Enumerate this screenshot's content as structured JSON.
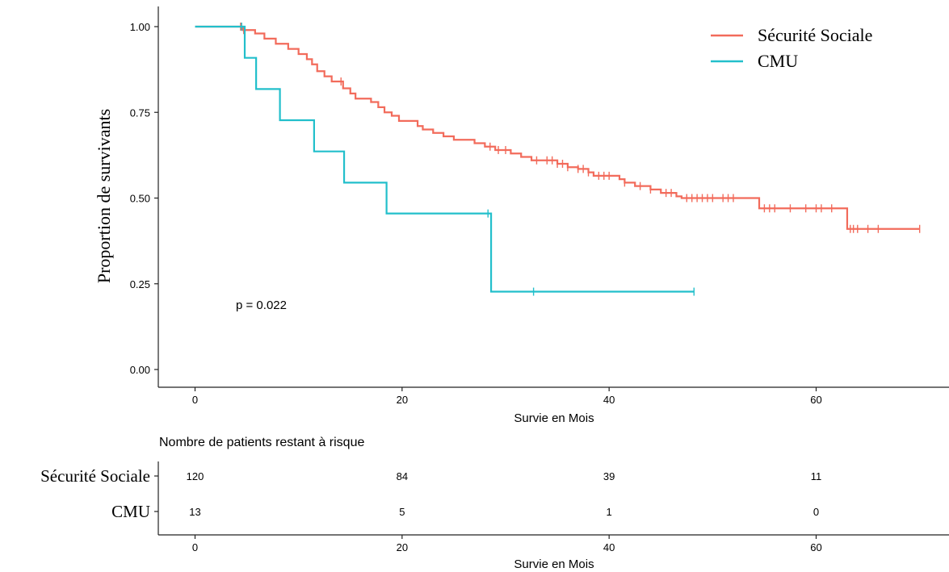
{
  "chart_data": [
    {
      "type": "line",
      "subtype": "kaplan-meier step curve",
      "xlabel": "Survie en Mois",
      "ylabel": "Proportion de survivants",
      "xlim": [
        -1.5,
        70
      ],
      "ylim": [
        -0.03,
        1.05
      ],
      "x_ticks": [
        0,
        20,
        40,
        60
      ],
      "y_ticks": [
        "0.00",
        "0.25",
        "0.50",
        "0.75",
        "1.00"
      ],
      "grid": false,
      "legend_position": "top-right",
      "annotation": "p = 0.022",
      "series": [
        {
          "name": "Sécurité Sociale",
          "color": "#f26b5b",
          "steps": [
            [
              0,
              1.0
            ],
            [
              4.6,
              0.99
            ],
            [
              5.8,
              0.98
            ],
            [
              6.7,
              0.965
            ],
            [
              7.8,
              0.95
            ],
            [
              9.0,
              0.935
            ],
            [
              10.0,
              0.92
            ],
            [
              10.8,
              0.905
            ],
            [
              11.3,
              0.89
            ],
            [
              11.8,
              0.87
            ],
            [
              12.5,
              0.855
            ],
            [
              13.2,
              0.84
            ],
            [
              14.3,
              0.82
            ],
            [
              15.0,
              0.805
            ],
            [
              15.5,
              0.79
            ],
            [
              17.0,
              0.78
            ],
            [
              17.7,
              0.765
            ],
            [
              18.3,
              0.75
            ],
            [
              19.0,
              0.74
            ],
            [
              19.7,
              0.725
            ],
            [
              21.5,
              0.71
            ],
            [
              22.0,
              0.7
            ],
            [
              23.0,
              0.69
            ],
            [
              24.0,
              0.68
            ],
            [
              25.0,
              0.67
            ],
            [
              27.0,
              0.66
            ],
            [
              28.0,
              0.65
            ],
            [
              29.0,
              0.64
            ],
            [
              30.5,
              0.63
            ],
            [
              31.5,
              0.62
            ],
            [
              32.5,
              0.61
            ],
            [
              35.0,
              0.6
            ],
            [
              36.0,
              0.59
            ],
            [
              37.0,
              0.585
            ],
            [
              38.0,
              0.575
            ],
            [
              38.5,
              0.565
            ],
            [
              41.0,
              0.555
            ],
            [
              41.5,
              0.545
            ],
            [
              42.5,
              0.535
            ],
            [
              44.0,
              0.525
            ],
            [
              45.0,
              0.515
            ],
            [
              46.5,
              0.505
            ],
            [
              47.0,
              0.5
            ],
            [
              54.5,
              0.47
            ],
            [
              63.0,
              0.41
            ],
            [
              70,
              0.41
            ]
          ],
          "censor_x": [
            4.4,
            4.7,
            14.1,
            28.5,
            29.3,
            30.0,
            33.0,
            34.0,
            34.5,
            35.0,
            35.5,
            36.0,
            37.0,
            37.5,
            38.0,
            39.0,
            39.5,
            40.0,
            41.5,
            43.0,
            44.0,
            45.5,
            46.0,
            47.5,
            48.0,
            48.5,
            49.0,
            49.5,
            50.0,
            51.0,
            51.5,
            52.0,
            55.0,
            55.5,
            56.0,
            57.5,
            59.0,
            60.0,
            60.5,
            61.5,
            63.3,
            63.6,
            64.0,
            65.0,
            66.0,
            70.0
          ]
        },
        {
          "name": "CMU",
          "color": "#22bfcb",
          "steps": [
            [
              0,
              1.0
            ],
            [
              4.8,
              0.909
            ],
            [
              5.9,
              0.818
            ],
            [
              8.2,
              0.727
            ],
            [
              11.5,
              0.636
            ],
            [
              14.4,
              0.545
            ],
            [
              18.5,
              0.455
            ],
            [
              28.6,
              0.227
            ],
            [
              48.2,
              0.227
            ]
          ],
          "censor_x": [
            4.5,
            28.3,
            32.7,
            48.2
          ]
        }
      ]
    },
    {
      "type": "table",
      "title": "Nombre de patients restant à risque",
      "xlabel": "Survie en Mois",
      "x_ticks": [
        0,
        20,
        40,
        60
      ],
      "rows": [
        {
          "label": "Sécurité Sociale",
          "values": [
            "120",
            "84",
            "39",
            "11"
          ]
        },
        {
          "label": "CMU",
          "values": [
            "13",
            "5",
            "1",
            "0"
          ]
        }
      ]
    }
  ]
}
